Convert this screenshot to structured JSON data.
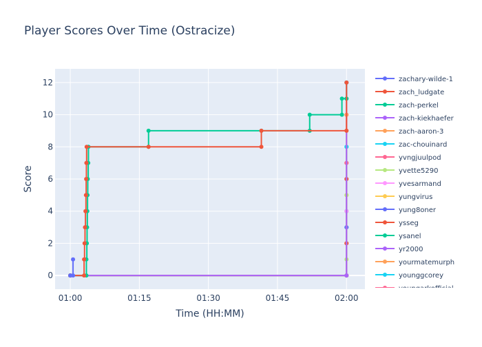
{
  "chart_data": {
    "type": "line",
    "title": "Player Scores Over Time (Ostracize)",
    "xlabel": "Time (HH:MM)",
    "ylabel": "Score",
    "x_tick_labels": [
      "01:00",
      "01:15",
      "01:30",
      "01:45",
      "02:00"
    ],
    "x_tick_minutes": [
      0,
      15,
      30,
      45,
      60
    ],
    "xlim_minutes": [
      -3.3,
      64
    ],
    "y_ticks": [
      0,
      2,
      4,
      6,
      8,
      10,
      12
    ],
    "ylim": [
      -0.85,
      12.85
    ],
    "grid": true,
    "legend_position": "right",
    "line_shape": "step",
    "series": [
      {
        "name": "zachary-wilde-1",
        "color": "#636efa",
        "points": [
          [
            0,
            0
          ],
          [
            0.6,
            0
          ],
          [
            0.6,
            1
          ]
        ]
      },
      {
        "name": "zach_ludgate",
        "color": "#EF553B",
        "points": [
          [
            0,
            0
          ],
          [
            3,
            0
          ],
          [
            3,
            1
          ],
          [
            3.1,
            2
          ],
          [
            3.2,
            3
          ],
          [
            3.3,
            4
          ],
          [
            3.4,
            5
          ],
          [
            3.45,
            6
          ],
          [
            3.5,
            7
          ],
          [
            3.55,
            8
          ],
          [
            17,
            8
          ],
          [
            41.5,
            8
          ],
          [
            41.5,
            9
          ],
          [
            60,
            9
          ],
          [
            60,
            12
          ]
        ]
      },
      {
        "name": "zach-perkel",
        "color": "#00cc96",
        "points": [
          [
            0,
            0
          ],
          [
            3.5,
            0
          ],
          [
            3.5,
            1
          ],
          [
            3.6,
            2
          ],
          [
            3.65,
            3
          ],
          [
            3.7,
            4
          ],
          [
            3.75,
            5
          ],
          [
            3.8,
            6
          ],
          [
            3.9,
            7
          ],
          [
            3.95,
            8
          ],
          [
            17,
            8
          ],
          [
            17,
            9
          ],
          [
            41.5,
            9
          ],
          [
            52,
            9
          ],
          [
            52,
            10
          ],
          [
            59,
            10
          ],
          [
            59,
            11
          ],
          [
            60,
            11
          ],
          [
            60,
            12
          ]
        ]
      },
      {
        "name": "zach-kiekhaefer",
        "color": "#ab63fa",
        "points": [
          [
            0,
            0
          ],
          [
            60,
            0
          ],
          [
            60,
            12
          ]
        ]
      },
      {
        "name": "zach-aaron-3",
        "color": "#FFA15A",
        "points": [
          [
            0,
            0
          ],
          [
            60,
            0
          ],
          [
            60,
            10
          ]
        ]
      },
      {
        "name": "zac-chouinard",
        "color": "#19d3f3",
        "points": [
          [
            0,
            0
          ],
          [
            60,
            0
          ],
          [
            60,
            8
          ]
        ]
      },
      {
        "name": "yvngjuulpod",
        "color": "#FF6692",
        "points": [
          [
            0,
            0
          ],
          [
            60,
            0
          ],
          [
            60,
            7
          ]
        ]
      },
      {
        "name": "yvette5290",
        "color": "#B6E880",
        "points": [
          [
            0,
            0
          ],
          [
            60,
            0
          ],
          [
            60,
            1
          ],
          [
            60,
            5
          ],
          [
            60,
            9
          ],
          [
            60,
            11
          ]
        ]
      },
      {
        "name": "yvesarmand",
        "color": "#FF97FF",
        "points": [
          [
            0,
            0
          ],
          [
            60,
            0
          ],
          [
            60,
            4
          ]
        ]
      },
      {
        "name": "yungvirus",
        "color": "#FECB52",
        "points": [
          [
            0,
            0
          ],
          [
            60,
            0
          ],
          [
            60,
            5
          ]
        ]
      },
      {
        "name": "yung8oner",
        "color": "#636efa",
        "points": [
          [
            0,
            0
          ],
          [
            60,
            0
          ],
          [
            60,
            3
          ]
        ]
      },
      {
        "name": "ysseg",
        "color": "#EF553B",
        "points": [
          [
            0,
            0
          ],
          [
            60,
            0
          ],
          [
            60,
            2
          ],
          [
            60,
            6
          ]
        ]
      },
      {
        "name": "ysanel",
        "color": "#00cc96",
        "points": [
          [
            0,
            0
          ],
          [
            60,
            0
          ],
          [
            60,
            4
          ]
        ]
      },
      {
        "name": "yr2000",
        "color": "#ab63fa",
        "points": [
          [
            0,
            0
          ],
          [
            60,
            0
          ],
          [
            60,
            6
          ]
        ]
      },
      {
        "name": "yourmatemurph",
        "color": "#FFA15A",
        "points": [
          [
            0,
            0
          ],
          [
            60,
            0
          ],
          [
            60,
            10
          ]
        ]
      },
      {
        "name": "younggcorey",
        "color": "#19d3f3",
        "points": [
          [
            0,
            0
          ],
          [
            60,
            0
          ],
          [
            60,
            3
          ],
          [
            60,
            8
          ]
        ]
      },
      {
        "name": "youngarkofficial",
        "color": "#FF6692",
        "points": [
          [
            0,
            0
          ],
          [
            60,
            0
          ],
          [
            60,
            2
          ],
          [
            60,
            7
          ]
        ]
      }
    ]
  }
}
